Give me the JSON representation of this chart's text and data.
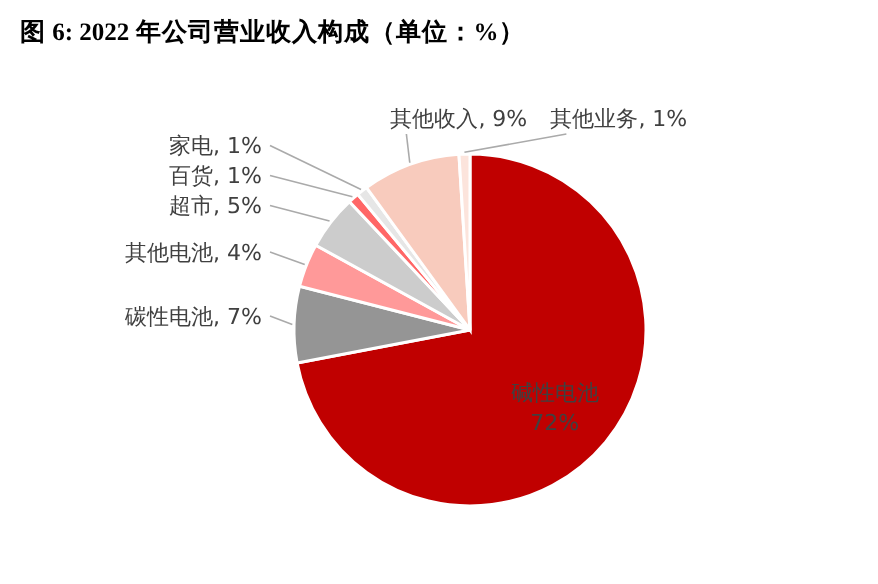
{
  "chart_data": {
    "type": "pie",
    "title": "图 6: 2022 年公司营业收入构成（单位：%）",
    "categories": [
      "碱性电池",
      "碳性电池",
      "其他电池",
      "超市",
      "百货",
      "家电",
      "其他收入",
      "其他业务"
    ],
    "values": [
      72,
      7,
      4,
      5,
      1,
      1,
      9,
      1
    ],
    "value_labels": [
      "72%",
      "7%",
      "4%",
      "5%",
      "1%",
      "1%",
      "9%",
      "1%"
    ],
    "colors": [
      "#c00000",
      "#959595",
      "#ff9999",
      "#cccccc",
      "#ff6666",
      "#e6e6e6",
      "#f8cbbd",
      "#fce4dc"
    ]
  }
}
